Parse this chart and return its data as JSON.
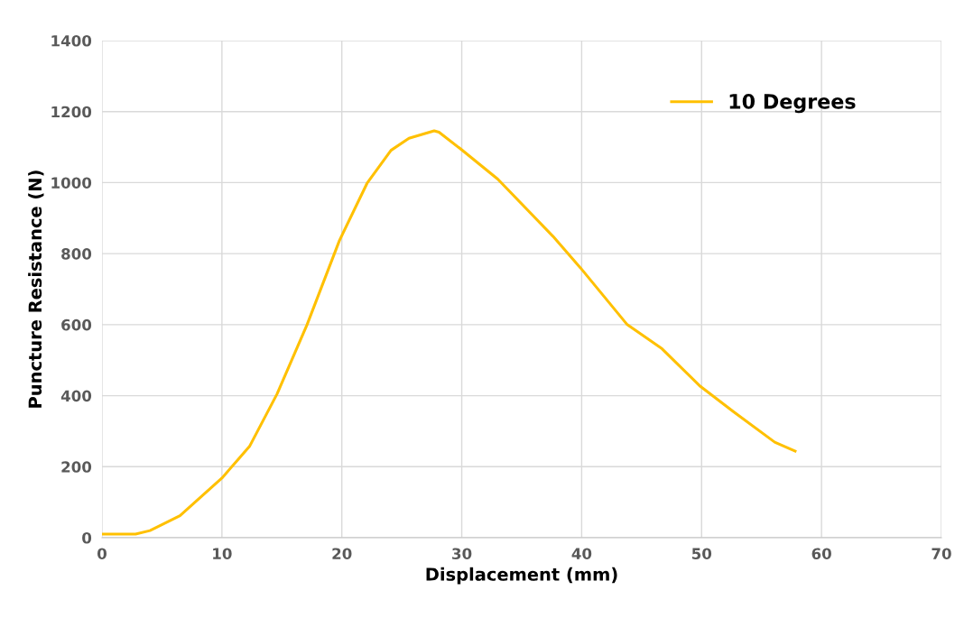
{
  "chart_data": {
    "type": "line",
    "xlabel": "Displacement (mm)",
    "ylabel": "Puncture Resistance (N)",
    "xlim": [
      0,
      70
    ],
    "xticks": [
      0,
      10,
      20,
      30,
      40,
      50,
      60,
      70
    ],
    "ylim": [
      0,
      1400
    ],
    "yticks": [
      0,
      200,
      400,
      600,
      800,
      1000,
      1200,
      1400
    ],
    "grid": true,
    "legend": "top right",
    "marker": "none",
    "line_style": "solid",
    "series": [
      {
        "name": "10 Degrees",
        "color": "#ffc000",
        "x": [
          0,
          2.8,
          4.0,
          6.5,
          10.0,
          12.3,
          14.6,
          17.1,
          19.8,
          22.1,
          24.1,
          25.6,
          27.7,
          28.1,
          29.9,
          33.0,
          37.6,
          39.9,
          43.8,
          46.7,
          49.9,
          52.7,
          56.1,
          57.8
        ],
        "values": [
          10,
          10,
          20,
          62,
          168,
          257,
          405,
          600,
          837,
          998,
          1091,
          1125,
          1146,
          1142,
          1095,
          1010,
          849,
          760,
          600,
          532,
          426,
          354,
          269,
          244
        ]
      }
    ]
  }
}
